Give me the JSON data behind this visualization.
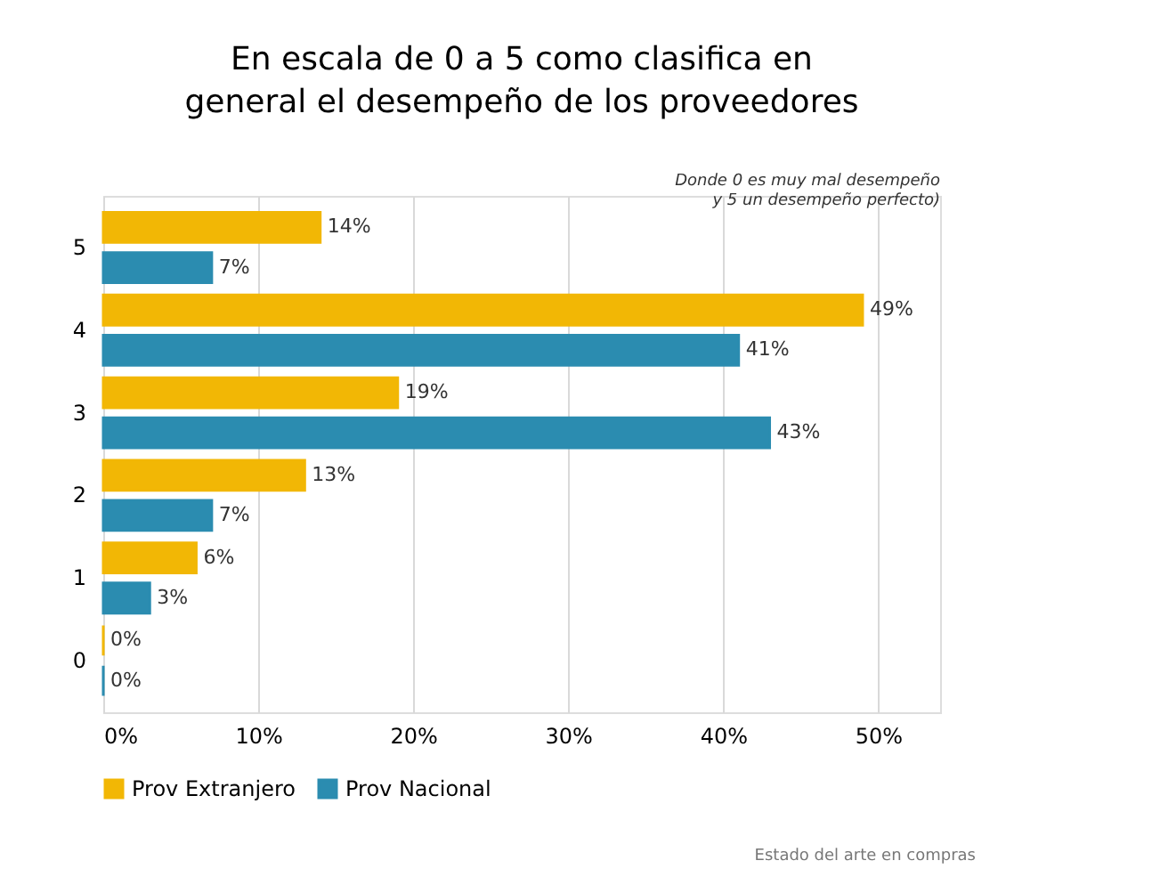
{
  "chart_data": {
    "type": "bar",
    "orientation": "horizontal",
    "title": "En escala de 0 a 5 como clasifica en general el desempeño de los proveedores",
    "categories": [
      "5",
      "4",
      "3",
      "2",
      "1",
      "0"
    ],
    "series": [
      {
        "name": "Prov Extranjero",
        "color": "#f2b705",
        "values": [
          14,
          49,
          19,
          13,
          6,
          0
        ],
        "value_labels": [
          "14%",
          "49%",
          "19%",
          "13%",
          "6%",
          "0%"
        ]
      },
      {
        "name": "Prov Nacional",
        "color": "#2b8cb0",
        "values": [
          7,
          41,
          43,
          7,
          3,
          0
        ],
        "value_labels": [
          "7%",
          "41%",
          "43%",
          "7%",
          "3%",
          "0%"
        ]
      }
    ],
    "xlim": [
      0,
      54
    ],
    "xticks": [
      {
        "value": 0,
        "label": "0%"
      },
      {
        "value": 10,
        "label": "10%"
      },
      {
        "value": 20,
        "label": "20%"
      },
      {
        "value": 30,
        "label": "30%"
      },
      {
        "value": 40,
        "label": "40%"
      },
      {
        "value": 50,
        "label": "50%"
      }
    ],
    "grid": "x",
    "legend": "bottom",
    "annotations": [
      "Donde 0 es muy mal desempeño\ny 5 un desempeño perfecto)",
      "Estado del arte en compras"
    ]
  }
}
